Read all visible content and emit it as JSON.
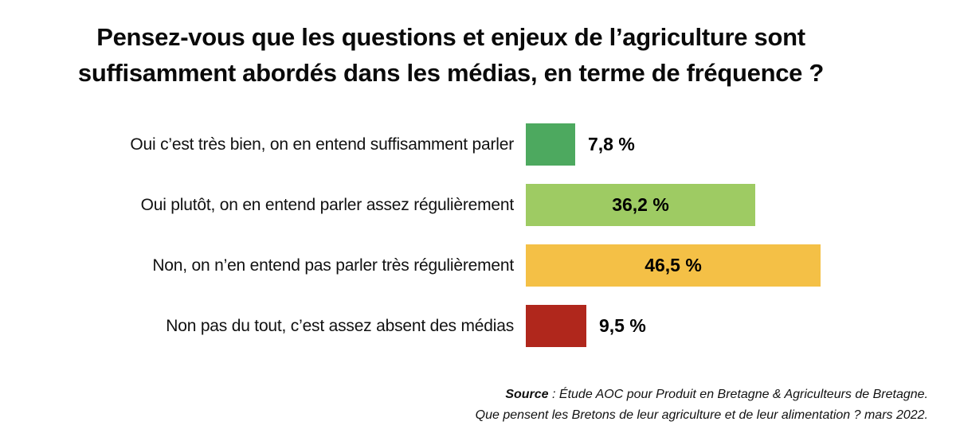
{
  "title": {
    "line1": "Pensez-vous que les questions et enjeux de l’agriculture sont",
    "line2": "suffisamment abordés dans les médias, en terme de fréquence ?"
  },
  "chart_data": {
    "type": "bar",
    "orientation": "horizontal",
    "unit": "%",
    "grid": false,
    "legend": false,
    "value_axis_range": [
      0,
      46.5
    ],
    "categories": [
      "Oui c’est très bien, on en entend suffisamment parler",
      "Oui plutôt, on en entend parler assez régulièrement",
      "Non, on n’en entend pas parler très régulièrement",
      "Non pas du tout, c’est assez absent des médias"
    ],
    "values": [
      7.8,
      36.2,
      46.5,
      9.5
    ],
    "value_labels": [
      "7,8 %",
      "36,2 %",
      "46,5 %",
      "9,5 %"
    ],
    "colors": [
      "#4da95f",
      "#9ecb63",
      "#f4c046",
      "#b0271c"
    ],
    "label_positions": [
      "outside",
      "inside",
      "inside",
      "outside"
    ]
  },
  "source": {
    "label": "Source",
    "line1_rest": " : Étude AOC pour Produit en Bretagne & Agriculteurs de Bretagne.",
    "line2": "Que pensent les Bretons de leur agriculture et de leur alimentation ? mars 2022."
  }
}
